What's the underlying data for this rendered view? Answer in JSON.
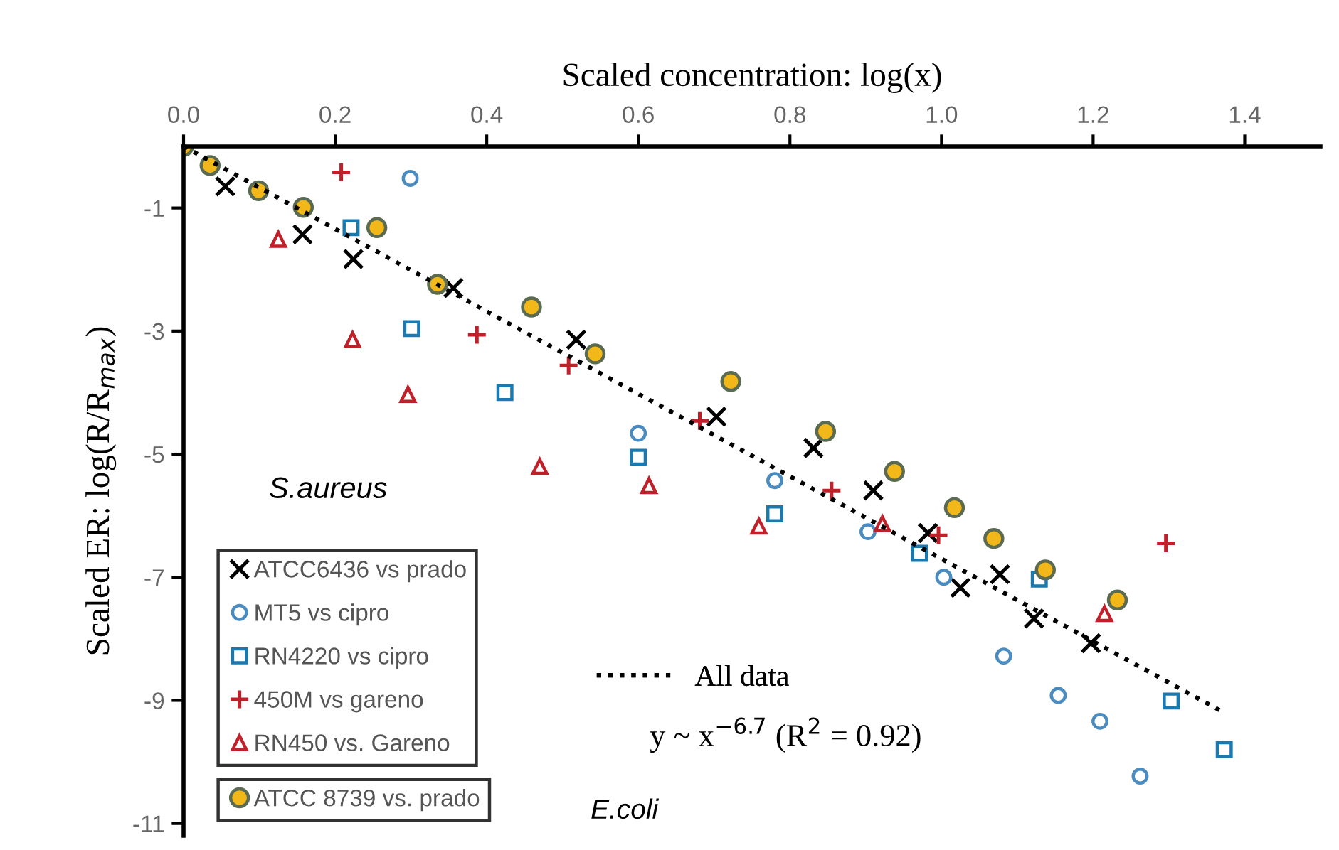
{
  "chart_data": {
    "type": "scatter",
    "xlabel": "Scaled concentration: log(x)",
    "ylabel": "Scaled ER: log(R/R$_{max}$)",
    "legend_title": "S.aureus",
    "annotations": [
      "E.coli",
      "y ~ x$^{−6.7}$ (R$^{2}$ = 0.92)"
    ],
    "xlim": [
      0,
      1.5
    ],
    "xticks": [
      {
        "value": 0,
        "label": "0.0"
      },
      0.2,
      0.4,
      0.6,
      0.8,
      {
        "value": 1,
        "label": "1.0"
      },
      1.2,
      1.4
    ],
    "ylim": [
      -11.2,
      0
    ],
    "yticks": [
      -1,
      -3,
      -5,
      -7,
      -9,
      -11
    ],
    "grid": false,
    "legend": "bottom left",
    "series": [
      {
        "name": "ATCC6436 vs prado",
        "marker": "cross",
        "color": "#000000",
        "x": [
          0.055,
          0.157,
          0.224,
          0.356,
          0.518,
          0.703,
          0.831,
          0.91,
          0.982,
          1.025,
          1.077,
          1.122,
          1.197
        ],
        "values": [
          -0.65,
          -1.43,
          -1.83,
          -2.3,
          -3.14,
          -4.39,
          -4.9,
          -5.59,
          -6.28,
          -7.17,
          -6.95,
          -7.67,
          -8.07
        ]
      },
      {
        "name": "MT5 vs cipro",
        "marker": "circle",
        "color": "#4a8cc0",
        "x": [
          0.299,
          0.6,
          0.78,
          0.903,
          1.003,
          1.082,
          1.154,
          1.209,
          1.262
        ],
        "values": [
          -0.52,
          -4.66,
          -5.43,
          -6.26,
          -7.0,
          -8.28,
          -8.92,
          -9.34,
          -10.23
        ]
      },
      {
        "name": "RN4220 vs cipro",
        "marker": "square",
        "color": "#1a7ab0",
        "x": [
          0.221,
          0.301,
          0.424,
          0.6,
          0.78,
          0.971,
          1.129,
          1.303,
          1.373
        ],
        "values": [
          -1.32,
          -2.96,
          -4.0,
          -5.05,
          -5.97,
          -6.61,
          -7.03,
          -9.01,
          -9.8
        ]
      },
      {
        "name": "450M vs gareno",
        "marker": "plus",
        "color": "#c0202a",
        "x": [
          0.208,
          0.387,
          0.508,
          0.681,
          0.855,
          0.996,
          1.296
        ],
        "values": [
          -0.42,
          -3.06,
          -3.56,
          -4.46,
          -5.59,
          -6.32,
          -6.45
        ]
      },
      {
        "name": "RN450 vs. Gareno",
        "marker": "triangle",
        "color": "#c0202a",
        "x": [
          0.125,
          0.223,
          0.296,
          0.47,
          0.614,
          0.759,
          0.922,
          1.215
        ],
        "values": [
          -1.51,
          -3.14,
          -4.03,
          -5.2,
          -5.51,
          -6.17,
          -6.13,
          -7.59
        ]
      },
      {
        "name": "ATCC 8739 vs. prado",
        "marker": "circle",
        "color": "#f2b718",
        "x": [
          0.0,
          0.035,
          0.099,
          0.158,
          0.255,
          0.335,
          0.459,
          0.543,
          0.722,
          0.847,
          0.938,
          1.017,
          1.069,
          1.137,
          1.232
        ],
        "values": [
          0.0,
          -0.31,
          -0.72,
          -0.99,
          -1.32,
          -2.24,
          -2.61,
          -3.37,
          -3.82,
          -4.63,
          -5.28,
          -5.87,
          -6.37,
          -6.88,
          -7.37
        ]
      },
      {
        "name": "All data",
        "type": "line",
        "line_style": "dotted",
        "marker": "none",
        "color": "#000000",
        "x": [
          0.0,
          1.37
        ],
        "values": [
          0.0,
          -9.18
        ]
      }
    ]
  }
}
